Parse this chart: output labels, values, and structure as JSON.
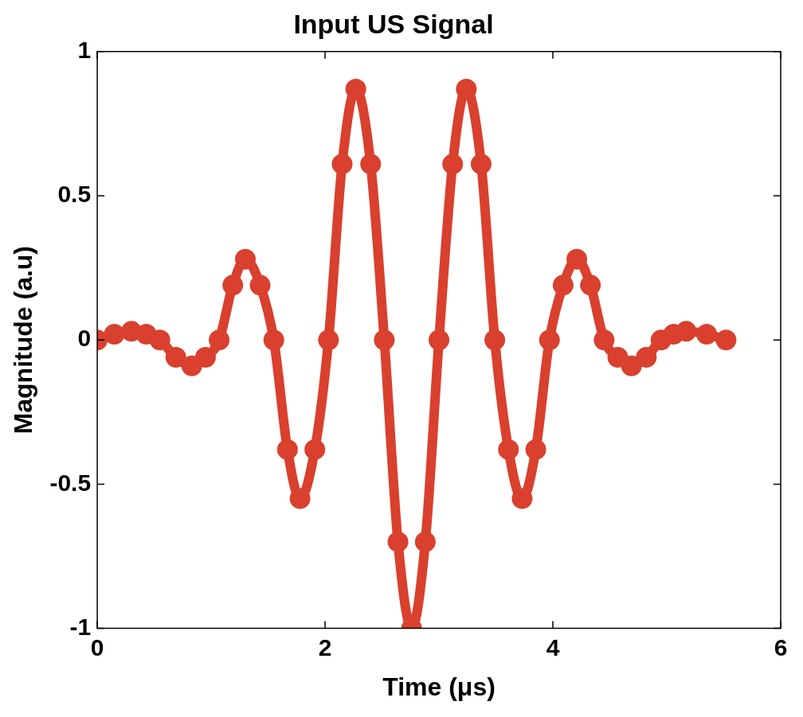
{
  "chart_data": {
    "type": "line",
    "title": "Input US Signal",
    "xlabel": "Time (μs)",
    "ylabel": "Magnitude (a.u)",
    "x": [
      0,
      0.15,
      0.3,
      0.43,
      0.55,
      0.69,
      0.83,
      0.95,
      1.07,
      1.19,
      1.3,
      1.43,
      1.55,
      1.67,
      1.78,
      1.91,
      2.03,
      2.15,
      2.27,
      2.4,
      2.52,
      2.64,
      2.76,
      2.88,
      3.0,
      3.12,
      3.24,
      3.37,
      3.49,
      3.61,
      3.73,
      3.85,
      3.97,
      4.09,
      4.21,
      4.33,
      4.45,
      4.57,
      4.69,
      4.82,
      4.95,
      5.06,
      5.17,
      5.35,
      5.52
    ],
    "series": [
      {
        "color": "#d9402e",
        "values": [
          0,
          0.02,
          0.03,
          0.02,
          0,
          -0.06,
          -0.09,
          -0.06,
          0,
          0.19,
          0.28,
          0.19,
          0,
          -0.38,
          -0.55,
          -0.38,
          0,
          0.61,
          0.87,
          0.61,
          0,
          -0.7,
          -1.0,
          -0.7,
          0,
          0.61,
          0.87,
          0.61,
          0,
          -0.38,
          -0.55,
          -0.38,
          0,
          0.19,
          0.28,
          0.19,
          0,
          -0.06,
          -0.09,
          -0.06,
          0,
          0.02,
          0.03,
          0.02,
          0
        ]
      }
    ],
    "xlim": [
      0,
      6
    ],
    "xticks": [
      0,
      2,
      4,
      6
    ],
    "ylim": [
      -1,
      1
    ],
    "yticks": [
      -1,
      -0.5,
      0,
      0.5,
      1
    ],
    "marker": "circle"
  }
}
